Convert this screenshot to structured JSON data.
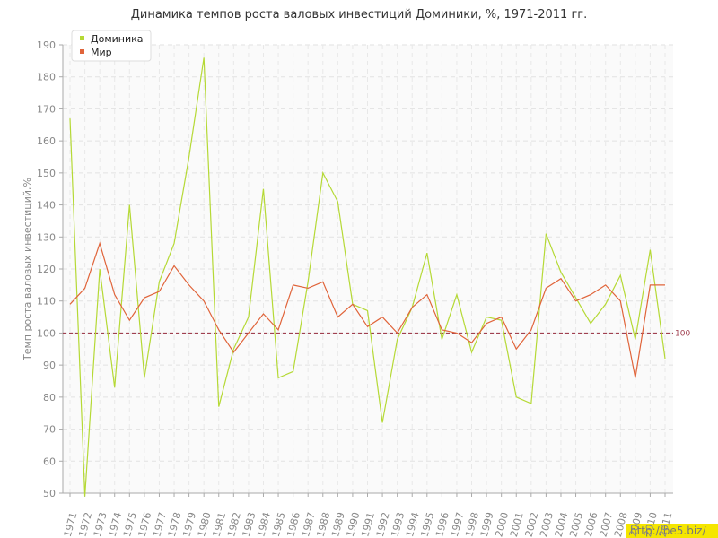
{
  "chart_data": {
    "type": "line",
    "title": "Динамика темпов роста валовых инвестиций Доминики, %, 1971-2011 гг.",
    "y_label": "Темп роста валовых инвестиций,%",
    "categories": [
      "1971",
      "1972",
      "1973",
      "1974",
      "1975",
      "1976",
      "1977",
      "1978",
      "1979",
      "1980",
      "1981",
      "1982",
      "1983",
      "1984",
      "1985",
      "1986",
      "1987",
      "1988",
      "1989",
      "1990",
      "1991",
      "1992",
      "1993",
      "1994",
      "1995",
      "1996",
      "1997",
      "1998",
      "1999",
      "2000",
      "2001",
      "2002",
      "2003",
      "2004",
      "2005",
      "2006",
      "2007",
      "2008",
      "2009",
      "2010",
      "2011"
    ],
    "series": [
      {
        "name": "Доминика",
        "color": "#b5d935",
        "values": [
          167,
          49,
          120,
          83,
          140,
          86,
          116,
          128,
          155,
          186,
          77,
          95,
          105,
          145,
          86,
          88,
          116,
          150,
          141,
          109,
          107,
          72,
          98,
          108,
          125,
          98,
          112,
          94,
          105,
          104,
          80,
          78,
          131,
          119,
          111,
          103,
          109,
          118,
          98,
          126,
          92
        ]
      },
      {
        "name": "Мир",
        "color": "#e0643a",
        "values": [
          109,
          114,
          128,
          112,
          104,
          111,
          113,
          121,
          115,
          110,
          101,
          94,
          100,
          106,
          101,
          115,
          114,
          116,
          105,
          109,
          102,
          105,
          100,
          108,
          112,
          101,
          100,
          97,
          103,
          105,
          95,
          101,
          114,
          117,
          110,
          112,
          115,
          110,
          86,
          115,
          115
        ]
      }
    ],
    "ylim": [
      50,
      190
    ],
    "yticks": [
      50,
      60,
      70,
      80,
      90,
      100,
      110,
      120,
      130,
      140,
      150,
      160,
      170,
      180,
      190
    ],
    "grid": true,
    "reference_line": {
      "value": 100,
      "color": "#a04050"
    },
    "legend": "top-left",
    "watermark": "http://be5.biz/"
  }
}
